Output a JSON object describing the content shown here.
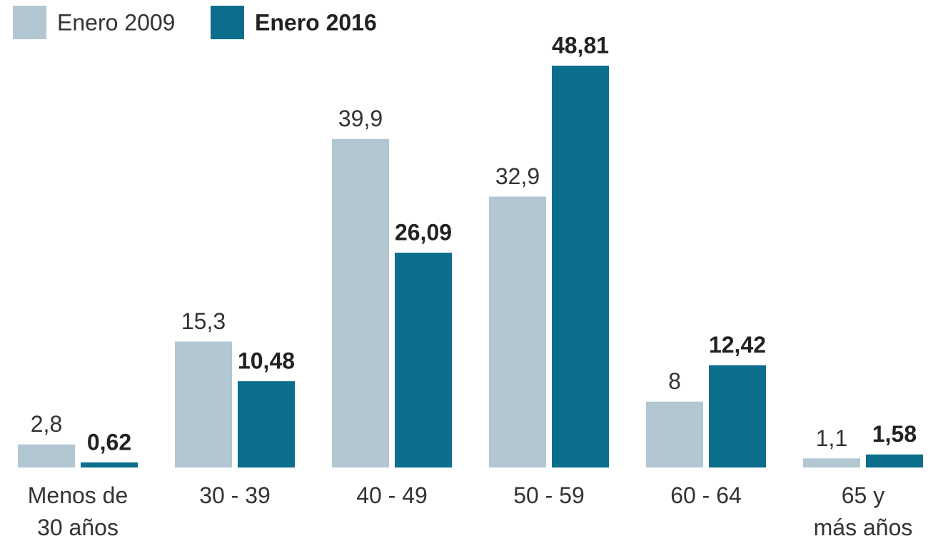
{
  "chart_data": {
    "type": "bar",
    "categories": [
      "Menos de\n30 años",
      "30 - 39",
      "40 - 49",
      "50 - 59",
      "60 - 64",
      "65 y\nmás años"
    ],
    "series": [
      {
        "name": "Enero 2009",
        "color": "#b3c7d3",
        "values": [
          2.8,
          15.3,
          39.9,
          32.9,
          8,
          1.1
        ],
        "value_labels": [
          "2,8",
          "15,3",
          "39,9",
          "32,9",
          "8",
          "1,1"
        ]
      },
      {
        "name": "Enero 2016",
        "color": "#0b6e8c",
        "values": [
          0.62,
          10.48,
          26.09,
          48.81,
          12.42,
          1.58
        ],
        "value_labels": [
          "0,62",
          "10,48",
          "26,09",
          "48,81",
          "12,42",
          "1,58"
        ]
      }
    ],
    "legend": "top-left"
  }
}
